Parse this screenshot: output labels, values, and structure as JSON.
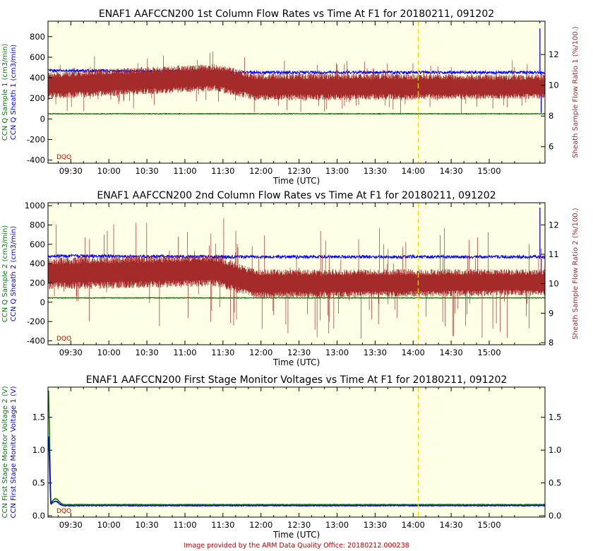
{
  "footer": {
    "credit": "Image provided by the ARM Data Quality Office: 20180212.000238"
  },
  "colors": {
    "plot_background": "#ffffe6",
    "sample": "#008000",
    "sheath": "#0000ff",
    "ratio": "#a52a2a",
    "marker_line": "#ffd700",
    "dqo": "#c00000"
  },
  "chart_data": [
    {
      "type": "line",
      "title": "ENAF1 AAFCCN200 1st Column Flow Rates vs Time At F1 for 20180211, 091202",
      "xlabel": "Time (UTC)",
      "x_ticks": [
        "09:30",
        "10:00",
        "10:30",
        "11:00",
        "11:30",
        "12:00",
        "12:30",
        "13:00",
        "13:30",
        "14:00",
        "14:30",
        "15:00"
      ],
      "x_range": [
        "09:12",
        "15:44"
      ],
      "marker_time": "14:04",
      "dqo_label": "DQO",
      "y_left": {
        "labels": [
          "CCN Q Sample 1 (cm3/min)",
          "CCN Q Sheath 1 (cm3/min)"
        ],
        "range": [
          -430,
          950
        ],
        "ticks": [
          -400,
          -200,
          0,
          200,
          400,
          600,
          800
        ]
      },
      "y_right": {
        "label": "Sheath Sample Flow Ratio 1 (%/100.)",
        "range": [
          4.93,
          14.17
        ],
        "ticks": [
          6,
          8,
          10,
          12
        ]
      },
      "series": [
        {
          "name": "CCN Q Sample 1",
          "axis": "left",
          "color": "#008000",
          "kind": "flat",
          "value": 50,
          "noise": 3
        },
        {
          "name": "CCN Q Sheath 1",
          "axis": "left",
          "color": "#0000ff",
          "kind": "sheath",
          "segments": [
            [
              "09:12",
              470
            ],
            [
              "11:28",
              460
            ],
            [
              "11:34",
              452
            ],
            [
              "15:44",
              452
            ]
          ],
          "noise": 14,
          "spikes": [
            [
              "15:40",
              880
            ],
            [
              "15:41",
              60
            ]
          ]
        },
        {
          "name": "Sheath Sample Flow Ratio 1",
          "axis": "right",
          "color": "#a52a2a",
          "kind": "noise",
          "center": [
            [
              "09:12",
              10.0
            ],
            [
              "11:25",
              10.5
            ],
            [
              "11:55",
              9.9
            ],
            [
              "13:00",
              9.9
            ],
            [
              "15:44",
              9.9
            ]
          ],
          "amp": [
            [
              "09:12",
              0.9
            ],
            [
              "11:25",
              0.9
            ],
            [
              "11:50",
              0.9
            ],
            [
              "15:44",
              0.8
            ]
          ],
          "spike_max": 1.8
        }
      ]
    },
    {
      "type": "line",
      "title": "ENAF1 AAFCCN200 2nd Column Flow Rates vs Time At F1 for 20180211, 091202",
      "xlabel": "Time (UTC)",
      "x_ticks": [
        "09:30",
        "10:00",
        "10:30",
        "11:00",
        "11:30",
        "12:00",
        "12:30",
        "13:00",
        "13:30",
        "14:00",
        "14:30",
        "15:00"
      ],
      "x_range": [
        "09:12",
        "15:44"
      ],
      "marker_time": "14:04",
      "dqo_label": "DQO",
      "y_left": {
        "labels": [
          "CCN Q Sample 2 (cm3/min)",
          "CCN Q Sheath 2 (cm3/min)"
        ],
        "range": [
          -440,
          1030
        ],
        "ticks": [
          -400,
          -200,
          0,
          200,
          400,
          600,
          800,
          1000
        ]
      },
      "y_right": {
        "label": "Sheath Sample Flow Ratio 2 (%/100.)",
        "range": [
          7.93,
          12.75
        ],
        "ticks": [
          8,
          9,
          10,
          11,
          12
        ]
      },
      "series": [
        {
          "name": "CCN Q Sample 2",
          "axis": "left",
          "color": "#008000",
          "kind": "flat",
          "value": 45,
          "noise": 3
        },
        {
          "name": "CCN Q Sheath 2",
          "axis": "left",
          "color": "#0000ff",
          "kind": "sheath",
          "segments": [
            [
              "09:12",
              480
            ],
            [
              "11:25",
              470
            ],
            [
              "11:30",
              470
            ],
            [
              "15:44",
              470
            ]
          ],
          "noise": 16,
          "spikes": [
            [
              "15:40",
              980
            ],
            [
              "15:41",
              100
            ]
          ]
        },
        {
          "name": "Sheath Sample Flow Ratio 2",
          "axis": "right",
          "color": "#a52a2a",
          "kind": "noise",
          "center": [
            [
              "09:12",
              10.35
            ],
            [
              "11:25",
              10.45
            ],
            [
              "11:55",
              10.0
            ],
            [
              "15:44",
              10.05
            ]
          ],
          "amp": [
            [
              "09:12",
              0.55
            ],
            [
              "11:25",
              0.55
            ],
            [
              "11:50",
              0.5
            ],
            [
              "15:44",
              0.45
            ]
          ],
          "spike_max": 1.9
        }
      ]
    },
    {
      "type": "line",
      "title": "ENAF1 AAFCCN200 First Stage Monitor Voltages vs Time At F1 for 20180211, 091202",
      "xlabel": "Time (UTC)",
      "x_ticks": [
        "09:30",
        "10:00",
        "10:30",
        "11:00",
        "11:30",
        "12:00",
        "12:30",
        "13:00",
        "13:30",
        "14:00",
        "14:30",
        "15:00"
      ],
      "x_range": [
        "09:12",
        "15:44"
      ],
      "marker_time": "14:04",
      "dqo_label": "DQO",
      "y_left": {
        "labels": [
          "CCN First Stage Monitor Voltage 2 (V)",
          "CCN First Stage Monitor Voltage 1 (V)"
        ],
        "range": [
          -0.02,
          1.96
        ],
        "ticks": [
          0.0,
          0.5,
          1.0,
          1.5
        ]
      },
      "y_right": {
        "label": "",
        "range": [
          -0.02,
          1.96
        ],
        "ticks": [
          0.0,
          0.5,
          1.0,
          1.5
        ]
      },
      "series": [
        {
          "name": "CCN First Stage Monitor Voltage 2",
          "axis": "left",
          "color": "#008000",
          "kind": "decay",
          "start": 1.9,
          "end": 0.17,
          "bump": 0.26,
          "noise": 0.004
        },
        {
          "name": "CCN First Stage Monitor Voltage 1",
          "axis": "left",
          "color": "#0000ff",
          "kind": "decay",
          "start": 1.2,
          "end": 0.155,
          "bump": 0.22,
          "noise": 0.006
        }
      ]
    }
  ]
}
